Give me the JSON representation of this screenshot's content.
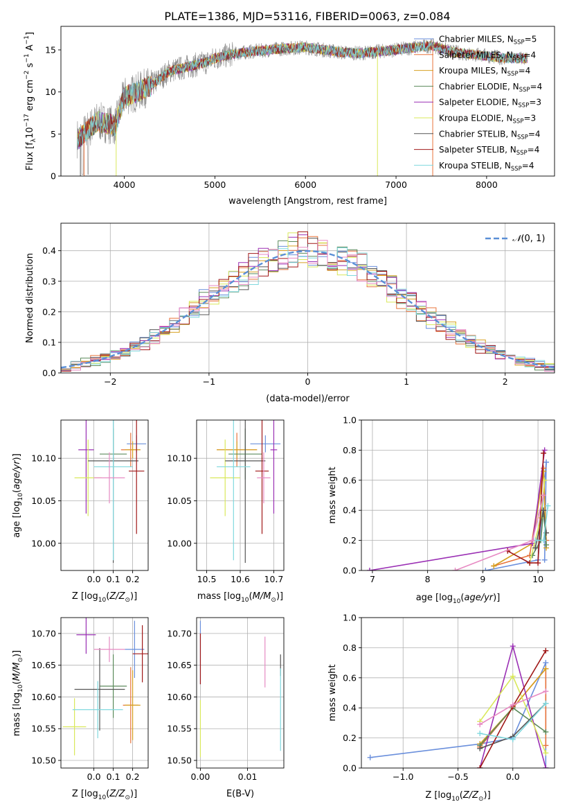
{
  "page_title": "PLATE=1386, MJD=53116, FIBERID=0063, z=0.084",
  "models": [
    {
      "label": "Chabrier MILES, N",
      "n": "5",
      "color": "#6a8fdc"
    },
    {
      "label": "Salpeter MILES, N",
      "n": "4",
      "color": "#e8733a"
    },
    {
      "label": "Kroupa MILES, N",
      "n": "4",
      "color": "#d6a020"
    },
    {
      "label": "Chabrier ELODIE, N",
      "n": "4",
      "color": "#5b8a5b"
    },
    {
      "label": "Salpeter ELODIE, N",
      "n": "3",
      "color": "#9a2fb4"
    },
    {
      "label": "Kroupa ELODIE, N",
      "n": "3",
      "color": "#d9e85a"
    },
    {
      "label": "Chabrier STELIB, N",
      "n": "4",
      "color": "#555555"
    },
    {
      "label": "Salpeter STELIB, N",
      "n": "4",
      "color": "#a01818"
    },
    {
      "label": "Kroupa STELIB, N",
      "n": "4",
      "color": "#7fd8de"
    }
  ],
  "extra_colors": {
    "pink": "#e78ac3",
    "data_gray": "#888888",
    "gaussian": "#5a8fd6"
  },
  "chart_data": [
    {
      "id": "spectrum",
      "type": "line",
      "xlabel": "wavelength [Angstrom, rest frame]",
      "ylabel_main": "Flux [f",
      "ylabel_rest": "10",
      "ylabel_units": " erg cm",
      "xlim": [
        3300,
        8750
      ],
      "ylim": [
        0,
        17.8
      ],
      "xticks": [
        4000,
        5000,
        6000,
        7000,
        8000
      ],
      "yticks": [
        0,
        5,
        10,
        15
      ],
      "nssp_sub": "SSP",
      "continuum_x": [
        3500,
        3700,
        3900,
        4000,
        4100,
        4300,
        4500,
        4700,
        4900,
        5000,
        5200,
        5400,
        5600,
        5800,
        6000,
        6200,
        6400,
        6600,
        6800,
        7000,
        7200,
        7400,
        7600,
        7800,
        8000,
        8200,
        8400
      ],
      "continuum_y": [
        4.5,
        6.5,
        6.0,
        9.5,
        9.8,
        10.8,
        12.5,
        13.0,
        13.5,
        14.0,
        14.5,
        14.8,
        15.0,
        15.2,
        15.3,
        15.0,
        14.7,
        14.6,
        14.8,
        15.0,
        15.3,
        15.5,
        14.8,
        14.5,
        14.3,
        14.0,
        14.0
      ]
    },
    {
      "id": "residuals",
      "type": "histogram",
      "xlabel": "(data-model)/error",
      "ylabel": "Normed distribution",
      "xlim": [
        -2.5,
        2.5
      ],
      "ylim": [
        0,
        0.49
      ],
      "xticks": [
        -2,
        -1,
        0,
        1,
        2
      ],
      "yticks": [
        0.0,
        0.1,
        0.2,
        0.3,
        0.4
      ],
      "bin_width": 0.1,
      "legend": "N(0, 1)"
    },
    {
      "id": "age-vs-Z",
      "type": "errorbar",
      "xlabel": "Z [log",
      "ylabel": "age  [log",
      "xlim": [
        -0.17,
        0.28
      ],
      "ylim": [
        9.968,
        10.145
      ],
      "xticks": [
        0.0,
        0.1,
        0.2
      ],
      "yticks": [
        10.0,
        10.05,
        10.1
      ],
      "points": [
        {
          "x": 0.22,
          "y": 10.117,
          "xerr": 0.05,
          "yerr": 0.01,
          "c": 0
        },
        {
          "x": 0.19,
          "y": 10.11,
          "xerr": 0.05,
          "yerr": 0.02,
          "c": 1
        },
        {
          "x": 0.2,
          "y": 10.11,
          "xerr": 0.04,
          "yerr": 0.01,
          "c": 2
        },
        {
          "x": 0.1,
          "y": 10.105,
          "xerr": 0.07,
          "yerr": 0.03,
          "c": 3
        },
        {
          "x": -0.04,
          "y": 10.11,
          "xerr": 0.04,
          "yerr": 0.075,
          "c": 4
        },
        {
          "x": -0.03,
          "y": 10.077,
          "xerr": 0.07,
          "yerr": 0.045,
          "c": 5
        },
        {
          "x": 0.1,
          "y": 10.097,
          "xerr": 0.13,
          "yerr": 0.12,
          "c": 6
        },
        {
          "x": 0.22,
          "y": 10.085,
          "xerr": 0.04,
          "yerr": 0.074,
          "c": 7
        },
        {
          "x": 0.1,
          "y": 10.09,
          "xerr": 0.1,
          "yerr": 0.11,
          "c": 8
        },
        {
          "x": 0.08,
          "y": 10.077,
          "xerr": 0.08,
          "yerr": 0.03,
          "c": 9
        }
      ]
    },
    {
      "id": "age-vs-mass",
      "type": "errorbar",
      "xlabel": "mass [log",
      "xlim": [
        10.47,
        10.73
      ],
      "ylim": [
        9.968,
        10.145
      ],
      "xticks": [
        10.5,
        10.6,
        10.7
      ],
      "yticks": [
        10.0,
        10.05,
        10.1
      ],
      "points": [
        {
          "x": 10.675,
          "y": 10.117,
          "xerr": 0.045,
          "yerr": 0.01,
          "c": 0
        },
        {
          "x": 10.59,
          "y": 10.11,
          "xerr": 0.06,
          "yerr": 0.02,
          "c": 1
        },
        {
          "x": 10.59,
          "y": 10.11,
          "xerr": 0.06,
          "yerr": 0.01,
          "c": 2
        },
        {
          "x": 10.615,
          "y": 10.105,
          "xerr": 0.05,
          "yerr": 0.03,
          "c": 3
        },
        {
          "x": 10.7,
          "y": 10.11,
          "xerr": 0.01,
          "yerr": 0.075,
          "c": 4
        },
        {
          "x": 10.555,
          "y": 10.077,
          "xerr": 0.045,
          "yerr": 0.045,
          "c": 5
        },
        {
          "x": 10.615,
          "y": 10.097,
          "xerr": 0.06,
          "yerr": 0.12,
          "c": 6
        },
        {
          "x": 10.665,
          "y": 10.085,
          "xerr": 0.02,
          "yerr": 0.074,
          "c": 7
        },
        {
          "x": 10.58,
          "y": 10.09,
          "xerr": 0.05,
          "yerr": 0.11,
          "c": 8
        },
        {
          "x": 10.67,
          "y": 10.077,
          "xerr": 0.02,
          "yerr": 0.03,
          "c": 9
        }
      ]
    },
    {
      "id": "weight-vs-age",
      "type": "line",
      "xlabel": "age  [log",
      "ylabel": "mass weight",
      "xlim": [
        6.8,
        10.3
      ],
      "ylim": [
        0,
        1
      ],
      "xticks": [
        7,
        8,
        9,
        10
      ],
      "yticks": [
        0.0,
        0.2,
        0.4,
        0.6,
        0.8,
        1.0
      ],
      "series": [
        {
          "c": 0,
          "x": [
            9.05,
            10.0,
            10.15,
            10.12
          ],
          "y": [
            0.0,
            0.07,
            0.72,
            0.07
          ]
        },
        {
          "c": 1,
          "x": [
            9.2,
            9.85,
            10.1,
            10.15
          ],
          "y": [
            0.03,
            0.1,
            0.68,
            0.2
          ]
        },
        {
          "c": 2,
          "x": [
            9.2,
            9.9,
            10.1,
            10.15
          ],
          "y": [
            0.03,
            0.18,
            0.66,
            0.15
          ]
        },
        {
          "c": 3,
          "x": [
            9.9,
            10.05,
            10.1,
            10.15
          ],
          "y": [
            0.1,
            0.2,
            0.4,
            0.17
          ]
        },
        {
          "c": 4,
          "x": [
            6.95,
            9.9,
            10.12
          ],
          "y": [
            0.0,
            0.18,
            0.8
          ]
        },
        {
          "c": 5,
          "x": [
            9.85,
            10.05,
            10.12
          ],
          "y": [
            0.05,
            0.35,
            0.6
          ]
        },
        {
          "c": 6,
          "x": [
            9.95,
            10.1,
            10.15
          ],
          "y": [
            0.15,
            0.4,
            0.25
          ]
        },
        {
          "c": 7,
          "x": [
            9.45,
            9.85,
            10.0,
            10.1
          ],
          "y": [
            0.13,
            0.05,
            0.05,
            0.78
          ]
        },
        {
          "c": 8,
          "x": [
            9.95,
            10.1,
            10.18
          ],
          "y": [
            0.2,
            0.2,
            0.43
          ]
        },
        {
          "c": 9,
          "x": [
            8.5,
            9.9,
            10.1
          ],
          "y": [
            0.0,
            0.2,
            0.5
          ]
        }
      ]
    },
    {
      "id": "mass-vs-Z",
      "type": "errorbar",
      "xlabel": "Z [log",
      "ylabel": "mass [log",
      "xlim": [
        -0.17,
        0.28
      ],
      "ylim": [
        10.488,
        10.725
      ],
      "xticks": [
        0.0,
        0.1,
        0.2
      ],
      "yticks": [
        10.5,
        10.55,
        10.6,
        10.65,
        10.7
      ],
      "points": [
        {
          "x": 0.21,
          "y": 10.675,
          "xerr": 0.05,
          "yerr": 0.045,
          "c": 0
        },
        {
          "x": 0.19,
          "y": 10.587,
          "xerr": 0.04,
          "yerr": 0.06,
          "c": 1
        },
        {
          "x": 0.2,
          "y": 10.587,
          "xerr": 0.04,
          "yerr": 0.055,
          "c": 2
        },
        {
          "x": 0.1,
          "y": 10.617,
          "xerr": 0.07,
          "yerr": 0.05,
          "c": 3
        },
        {
          "x": -0.04,
          "y": 10.698,
          "xerr": 0.05,
          "yerr": 0.03,
          "c": 4
        },
        {
          "x": -0.1,
          "y": 10.553,
          "xerr": 0.06,
          "yerr": 0.045,
          "c": 5
        },
        {
          "x": 0.03,
          "y": 10.612,
          "xerr": 0.13,
          "yerr": 0.065,
          "c": 6
        },
        {
          "x": 0.25,
          "y": 10.668,
          "xerr": 0.05,
          "yerr": 0.045,
          "c": 7
        },
        {
          "x": 0.02,
          "y": 10.58,
          "xerr": 0.13,
          "yerr": 0.045,
          "c": 8
        },
        {
          "x": 0.08,
          "y": 10.675,
          "xerr": 0.08,
          "yerr": 0.02,
          "c": 9
        }
      ]
    },
    {
      "id": "mass-vs-EBV",
      "type": "errorbar",
      "xlabel": "E(B-V)",
      "xlim": [
        -0.0008,
        0.0177
      ],
      "ylim": [
        10.488,
        10.725
      ],
      "xticks": [
        0.0,
        0.01
      ],
      "yticks": [
        10.5,
        10.55,
        10.6,
        10.65,
        10.7
      ],
      "points": [
        {
          "x": 0.0,
          "y": 10.67,
          "xerr": 0.0,
          "yerr": 0.05,
          "c": 0
        },
        {
          "x": 0.0,
          "y": 10.66,
          "xerr": 0.0,
          "yerr": 0.04,
          "c": 7
        },
        {
          "x": 0.0,
          "y": 10.55,
          "xerr": 0.0,
          "yerr": 0.045,
          "c": 5
        },
        {
          "x": 0.017,
          "y": 10.65,
          "xerr": 0.0,
          "yerr": 0.017,
          "c": 6
        },
        {
          "x": 0.017,
          "y": 10.58,
          "xerr": 0.0,
          "yerr": 0.065,
          "c": 8
        },
        {
          "x": 0.0137,
          "y": 10.655,
          "xerr": 0.0,
          "yerr": 0.04,
          "c": 9
        }
      ]
    },
    {
      "id": "weight-vs-Z",
      "type": "line",
      "xlabel": "Z [log",
      "ylabel": "mass weight",
      "xlim": [
        -1.38,
        0.38
      ],
      "ylim": [
        0,
        1
      ],
      "xticks": [
        -1.0,
        -0.5,
        0.0
      ],
      "yticks": [
        0.0,
        0.2,
        0.4,
        0.6,
        0.8,
        1.0
      ],
      "series": [
        {
          "c": 0,
          "x": [
            -1.3,
            -0.3,
            0.0,
            0.3,
            0.3
          ],
          "y": [
            0.07,
            0.16,
            0.2,
            0.7,
            0.0
          ]
        },
        {
          "c": 1,
          "x": [
            -0.3,
            0.0,
            0.3,
            0.3
          ],
          "y": [
            0.14,
            0.4,
            0.66,
            0.15
          ]
        },
        {
          "c": 2,
          "x": [
            -0.3,
            0.0,
            0.3
          ],
          "y": [
            0.16,
            0.4,
            0.66
          ]
        },
        {
          "c": 3,
          "x": [
            -0.3,
            0.0,
            0.3
          ],
          "y": [
            0.15,
            0.4,
            0.24
          ]
        },
        {
          "c": 4,
          "x": [
            -0.3,
            0.0,
            0.3
          ],
          "y": [
            0.0,
            0.81,
            0.0
          ]
        },
        {
          "c": 5,
          "x": [
            -0.3,
            0.0,
            0.3
          ],
          "y": [
            0.31,
            0.61,
            0.1
          ]
        },
        {
          "c": 6,
          "x": [
            -0.3,
            0.0,
            0.3
          ],
          "y": [
            0.13,
            0.21,
            0.43
          ]
        },
        {
          "c": 7,
          "x": [
            -0.3,
            0.0,
            0.3
          ],
          "y": [
            0.0,
            0.41,
            0.78
          ]
        },
        {
          "c": 8,
          "x": [
            -0.3,
            0.0,
            0.3
          ],
          "y": [
            0.23,
            0.19,
            0.43
          ]
        },
        {
          "c": 9,
          "x": [
            -0.3,
            0.0,
            0.3
          ],
          "y": [
            0.29,
            0.42,
            0.51
          ]
        }
      ]
    }
  ]
}
